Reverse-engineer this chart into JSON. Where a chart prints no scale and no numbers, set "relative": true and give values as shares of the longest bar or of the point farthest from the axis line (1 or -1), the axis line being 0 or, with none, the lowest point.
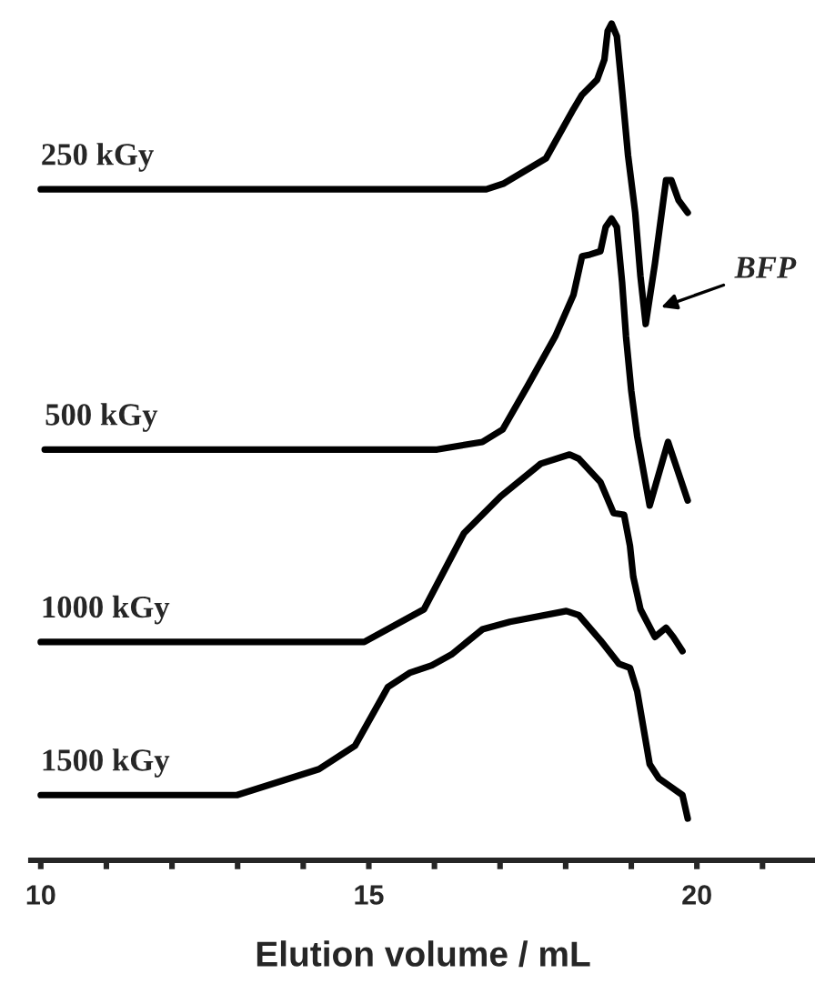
{
  "chart_data": {
    "type": "line",
    "relative": true,
    "xlabel": "Elution volume / mL",
    "xlim": [
      9.85,
      21.8
    ],
    "xticks": [
      10,
      {
        "value": 11,
        "label": null
      },
      {
        "value": 12,
        "label": null
      },
      {
        "value": 13,
        "label": null
      },
      {
        "value": 14,
        "label": null
      },
      15,
      {
        "value": 16,
        "label": null
      },
      {
        "value": 17,
        "label": null
      },
      {
        "value": 18,
        "label": null
      },
      {
        "value": 19,
        "label": null
      },
      20,
      {
        "value": 21,
        "label": null
      }
    ],
    "tick_labels": "x",
    "grid": false,
    "legend": false,
    "marker": "none",
    "line_style": "solid",
    "series": [
      {
        "name": "250 kGy",
        "color": "#000000",
        "x": [
          10,
          16.79,
          17.06,
          17.7,
          18.12,
          18.25,
          18.48,
          18.59,
          18.64,
          18.7,
          18.78,
          18.86,
          18.95,
          19.06,
          19.14,
          19.22,
          19.36,
          19.53,
          19.61,
          19.72,
          19.86
        ],
        "values": [
          0.802,
          0.802,
          0.809,
          0.839,
          0.898,
          0.915,
          0.933,
          0.957,
          0.991,
          1,
          0.985,
          0.92,
          0.843,
          0.774,
          0.698,
          0.641,
          0.713,
          0.813,
          0.813,
          0.789,
          0.774
        ]
      },
      {
        "name": "500 kGy",
        "color": "#000000",
        "x": [
          10.06,
          16.04,
          16.73,
          17.04,
          17.42,
          17.84,
          18.12,
          18.25,
          18.37,
          18.53,
          18.61,
          18.7,
          18.78,
          18.86,
          18.92,
          19.0,
          19.09,
          19.28,
          19.56,
          19.86
        ],
        "values": [
          0.491,
          0.491,
          0.5,
          0.515,
          0.567,
          0.626,
          0.676,
          0.722,
          0.724,
          0.728,
          0.757,
          0.767,
          0.757,
          0.691,
          0.626,
          0.561,
          0.507,
          0.424,
          0.5,
          0.43
        ]
      },
      {
        "name": "1000 kGy",
        "color": "#000000",
        "x": [
          10,
          14.93,
          15.84,
          16.45,
          17.01,
          17.62,
          18.06,
          18.2,
          18.53,
          18.73,
          18.89,
          18.98,
          19.03,
          19.14,
          19.36,
          19.53,
          19.64,
          19.78
        ],
        "values": [
          0.261,
          0.261,
          0.3,
          0.391,
          0.435,
          0.474,
          0.485,
          0.48,
          0.452,
          0.415,
          0.413,
          0.376,
          0.339,
          0.3,
          0.267,
          0.278,
          0.267,
          0.25
        ]
      },
      {
        "name": "1500 kGy",
        "color": "#000000",
        "x": [
          10,
          12.99,
          14.24,
          14.79,
          15.29,
          15.62,
          15.96,
          16.26,
          16.73,
          17.15,
          18.01,
          18.2,
          18.53,
          18.81,
          18.98,
          19.09,
          19.28,
          19.42,
          19.78,
          19.86
        ],
        "values": [
          0.078,
          0.078,
          0.109,
          0.137,
          0.207,
          0.224,
          0.233,
          0.246,
          0.276,
          0.285,
          0.298,
          0.293,
          0.263,
          0.235,
          0.23,
          0.202,
          0.115,
          0.098,
          0.078,
          0.05
        ]
      }
    ],
    "annotations": [
      {
        "text": "BFP",
        "x": 19.42,
        "y": 0.66
      }
    ]
  }
}
